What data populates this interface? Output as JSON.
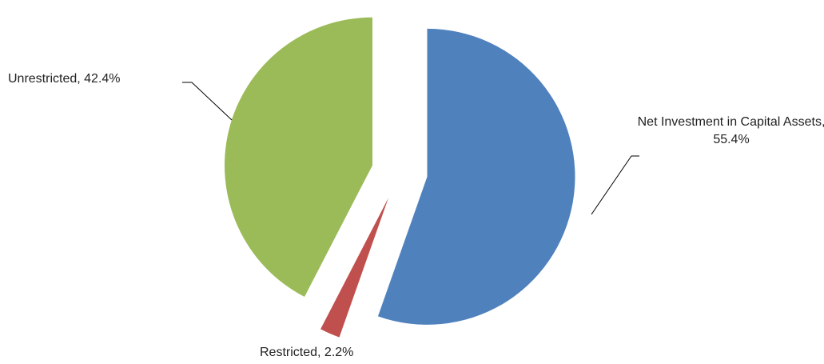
{
  "chart_data": {
    "type": "pie",
    "categories": [
      "Net Investment in Capital Assets",
      "Restricted",
      "Unrestricted"
    ],
    "values": [
      55.4,
      2.2,
      42.4
    ],
    "value_labels": [
      "55.4%",
      "2.2%",
      "42.4%"
    ],
    "colors": [
      "#4f81bd",
      "#c0504d",
      "#9bbb59"
    ]
  }
}
